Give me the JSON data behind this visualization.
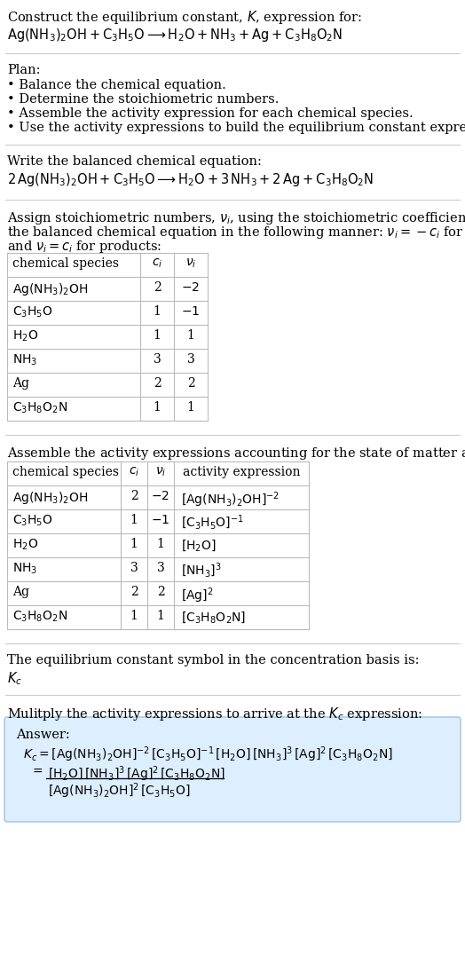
{
  "title_line1": "Construct the equilibrium constant, $K$, expression for:",
  "title_line2": "$\\mathrm{Ag(NH_3)_2OH + C_3H_5O} \\longrightarrow \\mathrm{H_2O + NH_3 + Ag + C_3H_8O_2N}$",
  "plan_header": "Plan:",
  "plan_items": [
    "• Balance the chemical equation.",
    "• Determine the stoichiometric numbers.",
    "• Assemble the activity expression for each chemical species.",
    "• Use the activity expressions to build the equilibrium constant expression."
  ],
  "balanced_header": "Write the balanced chemical equation:",
  "balanced_eq": "$2\\,\\mathrm{Ag(NH_3)_2OH + C_3H_5O} \\longrightarrow \\mathrm{H_2O} + 3\\,\\mathrm{NH_3} + 2\\,\\mathrm{Ag} + \\mathrm{C_3H_8O_2N}$",
  "stoich_text1": "Assign stoichiometric numbers, $\\nu_i$, using the stoichiometric coefficients, $c_i$, from",
  "stoich_text2": "the balanced chemical equation in the following manner: $\\nu_i = -c_i$ for reactants",
  "stoich_text3": "and $\\nu_i = c_i$ for products:",
  "table1_col_headers": [
    "chemical species",
    "$c_i$",
    "$\\nu_i$"
  ],
  "table1_rows": [
    [
      "$\\mathrm{Ag(NH_3)_2OH}$",
      "2",
      "$-2$"
    ],
    [
      "$\\mathrm{C_3H_5O}$",
      "1",
      "$-1$"
    ],
    [
      "$\\mathrm{H_2O}$",
      "1",
      "1"
    ],
    [
      "$\\mathrm{NH_3}$",
      "3",
      "3"
    ],
    [
      "Ag",
      "2",
      "2"
    ],
    [
      "$\\mathrm{C_3H_8O_2N}$",
      "1",
      "1"
    ]
  ],
  "activity_header": "Assemble the activity expressions accounting for the state of matter and $\\nu_i$:",
  "table2_col_headers": [
    "chemical species",
    "$c_i$",
    "$\\nu_i$",
    "activity expression"
  ],
  "table2_rows": [
    [
      "$\\mathrm{Ag(NH_3)_2OH}$",
      "2",
      "$-2$",
      "$[\\mathrm{Ag(NH_3)_2OH}]^{-2}$"
    ],
    [
      "$\\mathrm{C_3H_5O}$",
      "1",
      "$-1$",
      "$[\\mathrm{C_3H_5O}]^{-1}$"
    ],
    [
      "$\\mathrm{H_2O}$",
      "1",
      "1",
      "$[\\mathrm{H_2O}]$"
    ],
    [
      "$\\mathrm{NH_3}$",
      "3",
      "3",
      "$[\\mathrm{NH_3}]^3$"
    ],
    [
      "Ag",
      "2",
      "2",
      "$[\\mathrm{Ag}]^2$"
    ],
    [
      "$\\mathrm{C_3H_8O_2N}$",
      "1",
      "1",
      "$[\\mathrm{C_3H_8O_2N}]$"
    ]
  ],
  "kc_header": "The equilibrium constant symbol in the concentration basis is:",
  "kc_symbol": "$K_c$",
  "multiply_header": "Mulitply the activity expressions to arrive at the $K_c$ expression:",
  "answer_label": "Answer:",
  "answer_line1": "$K_c = [\\mathrm{Ag(NH_3)_2OH}]^{-2}\\,[\\mathrm{C_3H_5O}]^{-1}\\,[\\mathrm{H_2O}]\\,[\\mathrm{NH_3}]^3\\,[\\mathrm{Ag}]^2\\,[\\mathrm{C_3H_8O_2N}]$",
  "answer_eq_sign": "$=$",
  "answer_numerator": "$[\\mathrm{H_2O}]\\,[\\mathrm{NH_3}]^3\\,[\\mathrm{Ag}]^2\\,[\\mathrm{C_3H_8O_2N}]$",
  "answer_denominator": "$[\\mathrm{Ag(NH_3)_2OH}]^2\\,[\\mathrm{C_3H_5O}]$",
  "bg_color": "#ffffff",
  "answer_bg_color": "#ddeeff",
  "table_line_color": "#bbbbbb",
  "sep_line_color": "#cccccc",
  "text_color": "#000000",
  "fontsize": 10.5,
  "fontsize_table": 10.0
}
